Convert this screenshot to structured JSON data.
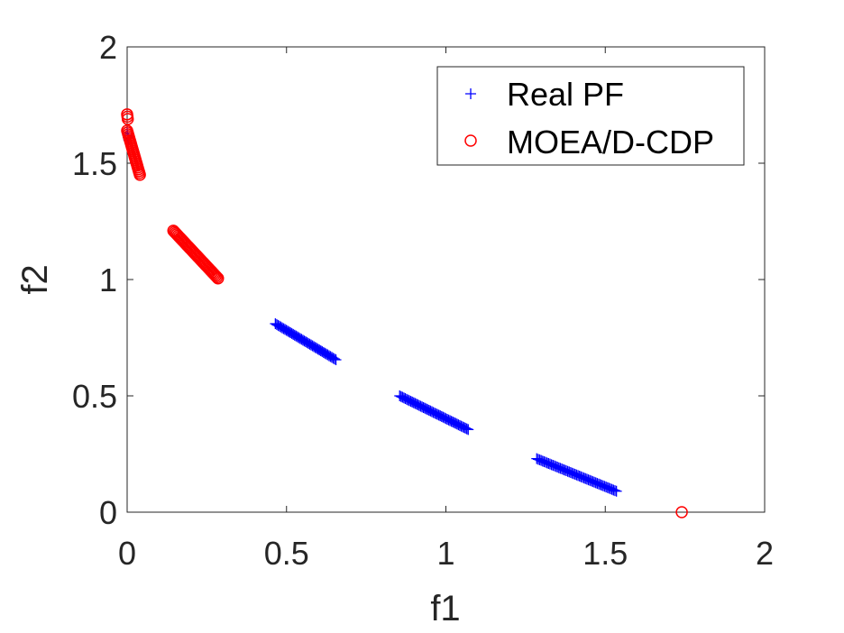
{
  "chart_data": {
    "type": "scatter",
    "title": "",
    "xlabel": "f1",
    "ylabel": "f2",
    "xlim": [
      0,
      2
    ],
    "ylim": [
      0,
      2
    ],
    "xticks": [
      "0",
      "0.5",
      "1",
      "1.5",
      "2"
    ],
    "yticks": [
      "0",
      "0.5",
      "1",
      "1.5",
      "2"
    ],
    "grid": false,
    "legend_position": "top-right",
    "series": [
      {
        "name": "Real PF",
        "marker": "plus",
        "color": "#0000ff",
        "segments": [
          {
            "x_start": 0.0,
            "y_start": 1.63,
            "x_end": 0.005,
            "y_end": 1.6,
            "points": 4
          },
          {
            "x_start": 0.465,
            "y_start": 0.81,
            "x_end": 0.655,
            "y_end": 0.655,
            "points": 45
          },
          {
            "x_start": 0.855,
            "y_start": 0.5,
            "x_end": 1.07,
            "y_end": 0.355,
            "points": 50
          },
          {
            "x_start": 1.285,
            "y_start": 0.23,
            "x_end": 1.535,
            "y_end": 0.09,
            "points": 55
          }
        ]
      },
      {
        "name": "MOEA/D-CDP",
        "marker": "circle",
        "color": "#ff0000",
        "segments": [
          {
            "x_start": 0.0,
            "y_start": 1.71,
            "x_end": 0.002,
            "y_end": 1.69,
            "points": 3
          },
          {
            "x_start": 0.0,
            "y_start": 1.64,
            "x_end": 0.04,
            "y_end": 1.45,
            "points": 25
          },
          {
            "x_start": 0.145,
            "y_start": 1.21,
            "x_end": 0.285,
            "y_end": 1.005,
            "points": 40
          }
        ],
        "points": [
          {
            "x": 1.74,
            "y": 0.0
          }
        ]
      }
    ]
  }
}
